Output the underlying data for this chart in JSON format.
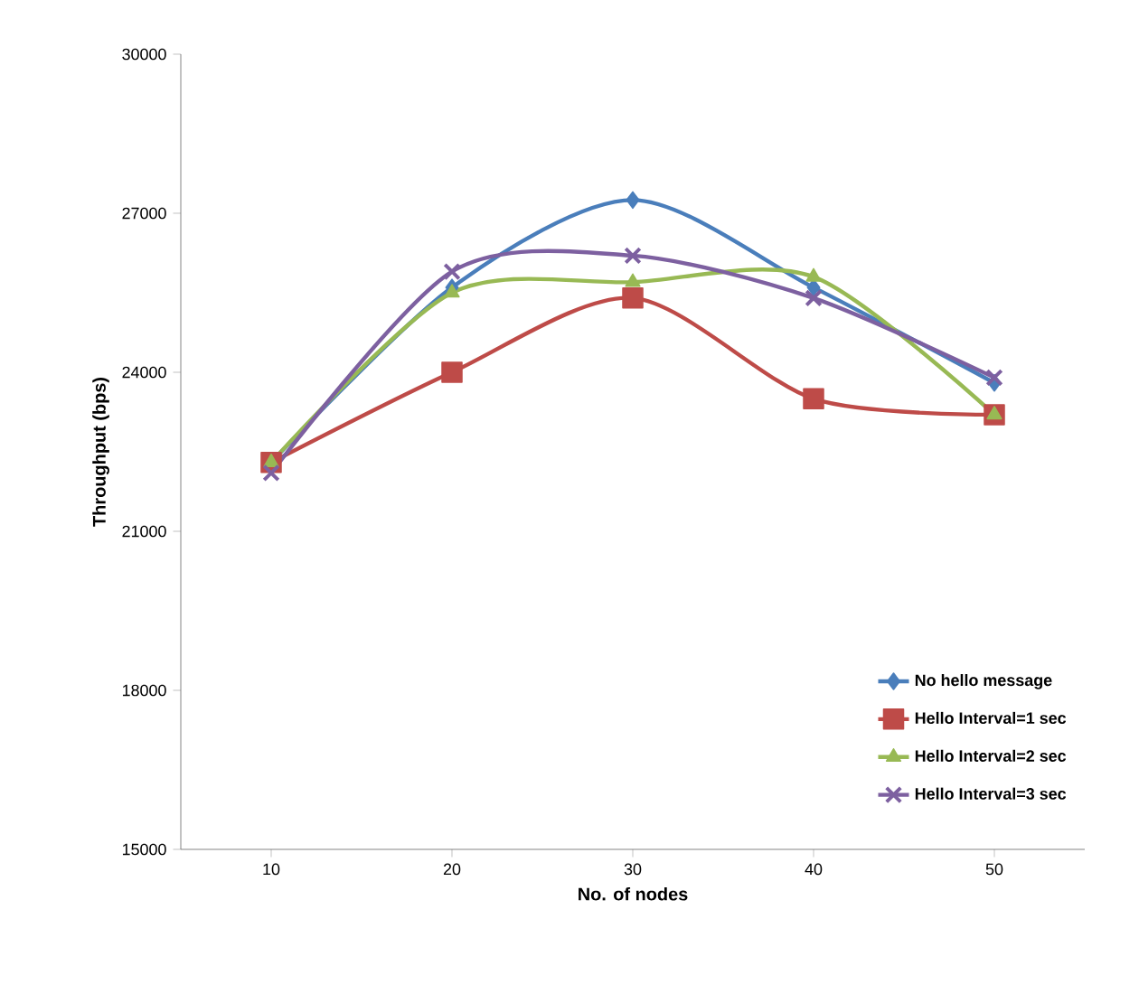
{
  "chart_data": {
    "type": "line",
    "xlabel": "No. of nodes",
    "ylabel": "Throughput  (bps)",
    "categories": [
      "10",
      "20",
      "30",
      "40",
      "50"
    ],
    "series": [
      {
        "name": "No hello message",
        "color": "#4a7ebb",
        "marker": "diamond",
        "values": [
          22300,
          25600,
          27250,
          25600,
          23800
        ]
      },
      {
        "name": "Hello Interval=1 sec",
        "color": "#be4b48",
        "marker": "square",
        "values": [
          22300,
          24000,
          25400,
          23500,
          23200
        ]
      },
      {
        "name": "Hello Interval=2 sec",
        "color": "#98b954",
        "marker": "triangle",
        "values": [
          22300,
          25500,
          25700,
          25800,
          23200
        ]
      },
      {
        "name": "Hello Interval=3 sec",
        "color": "#7d60a0",
        "marker": "cross",
        "values": [
          22100,
          25900,
          26200,
          25400,
          23900
        ]
      }
    ],
    "ylim": [
      15000,
      30000
    ],
    "yticks": [
      15000,
      18000,
      21000,
      24000,
      27000,
      30000
    ],
    "legend": "bottom right",
    "grid": false
  }
}
